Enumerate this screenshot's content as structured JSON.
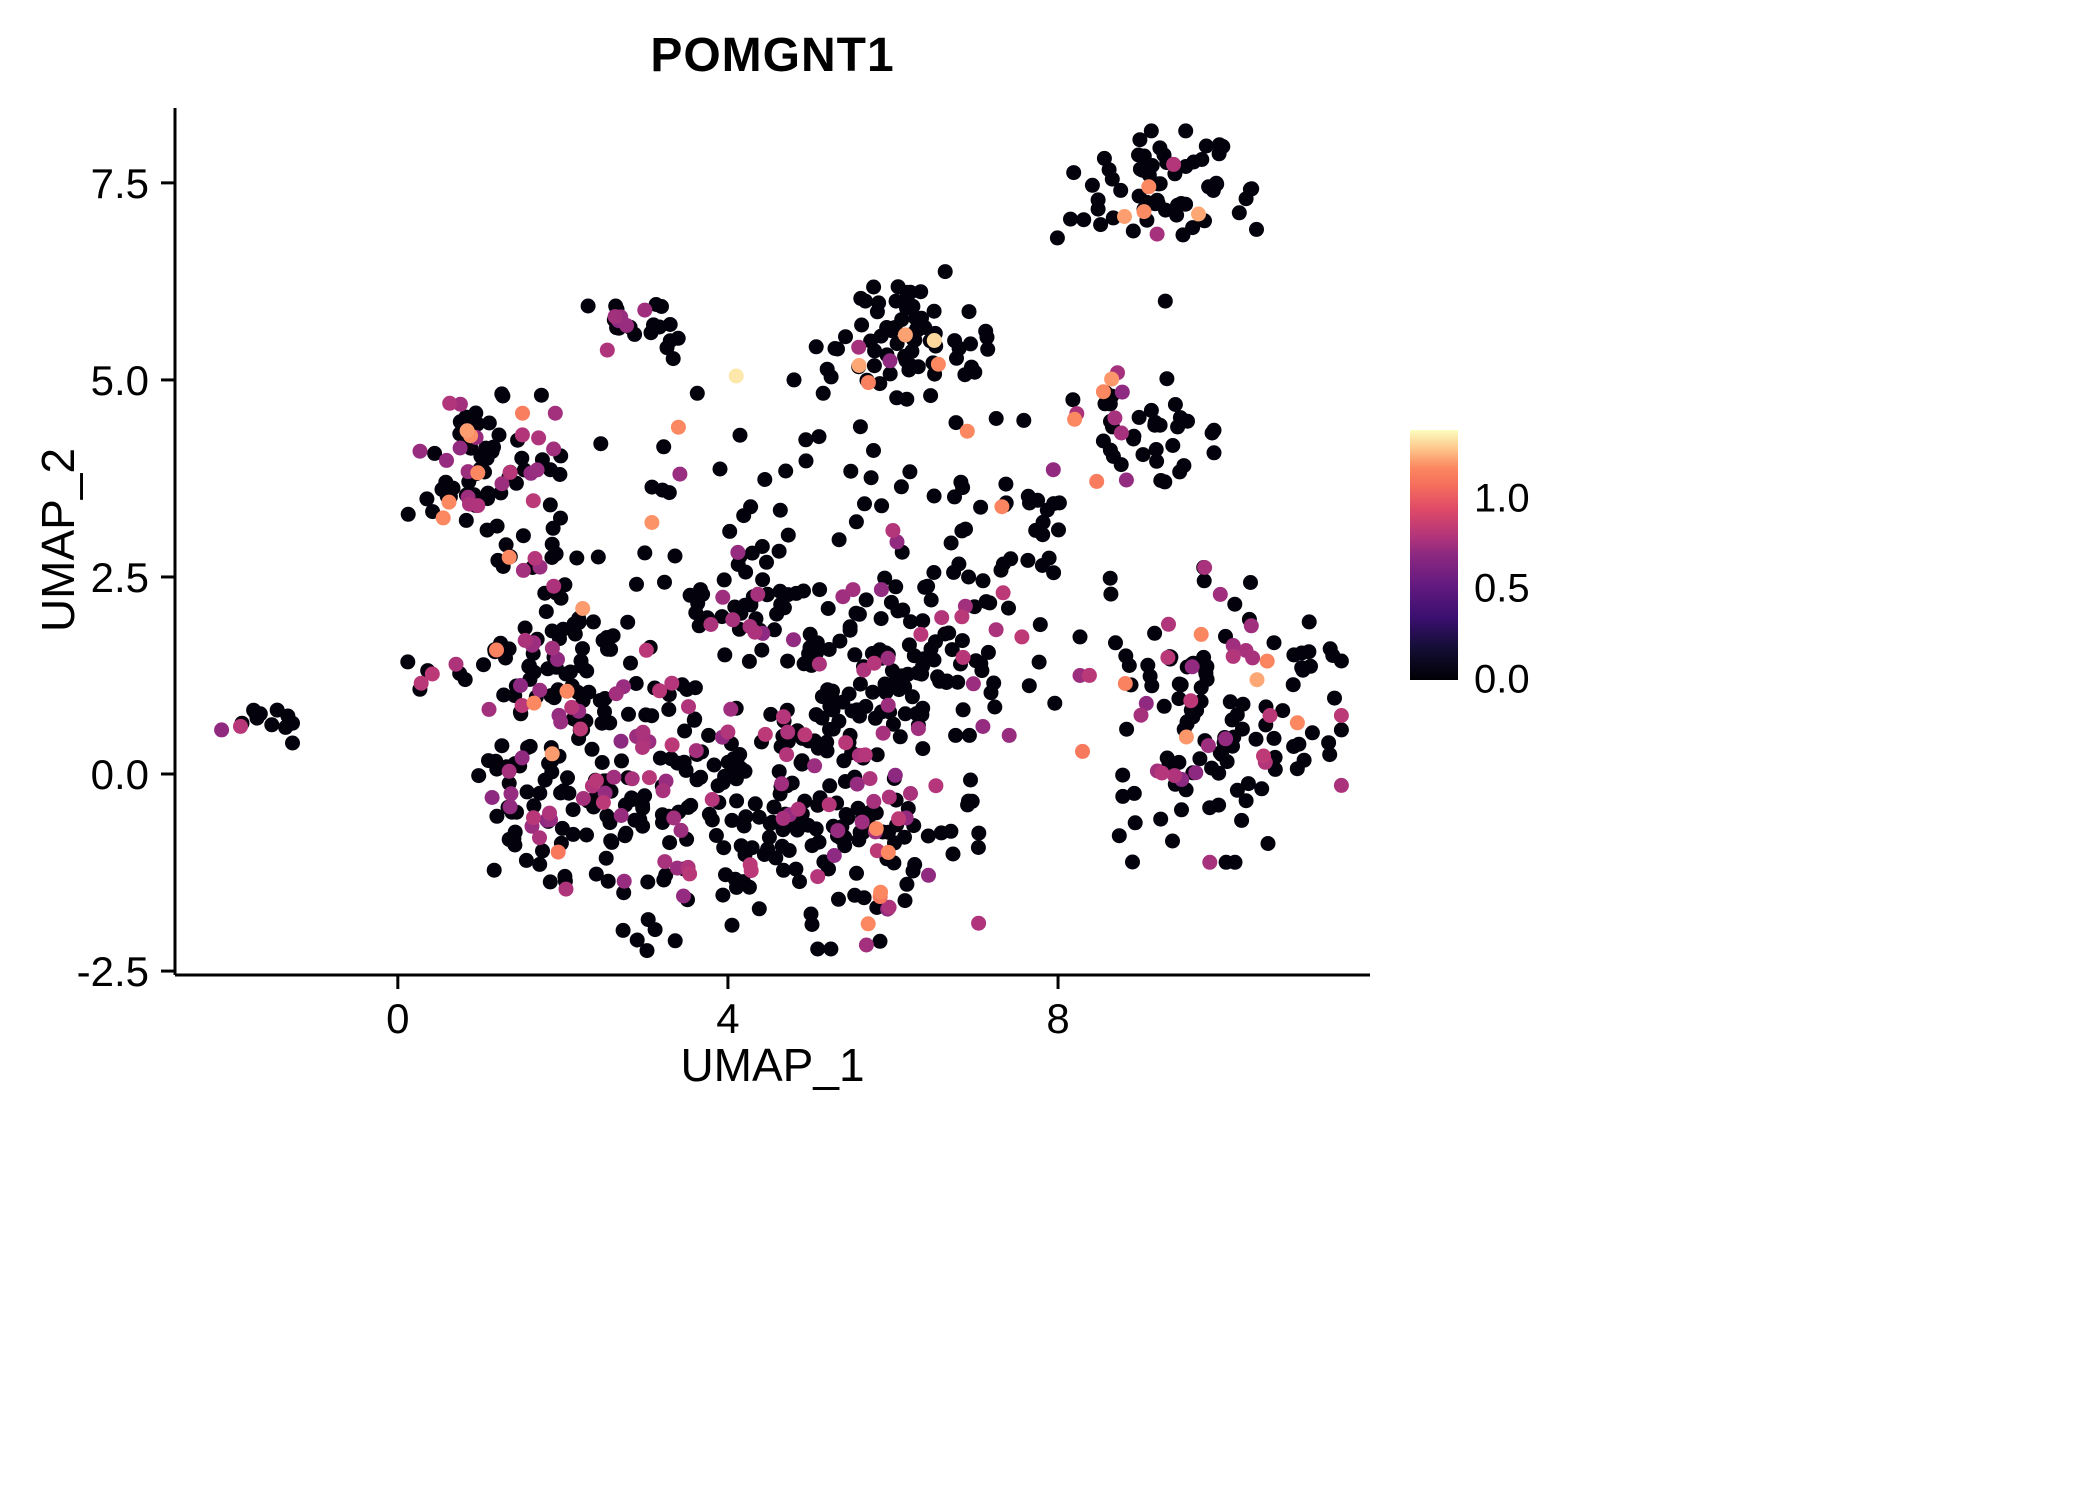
{
  "chart_data": {
    "type": "scatter",
    "title": "POMGNT1",
    "xlabel": "UMAP_1",
    "ylabel": "UMAP_2",
    "xlim": [
      -2.7,
      11.78
    ],
    "ylim": [
      -2.55,
      8.45
    ],
    "grid": false,
    "legend_position": "right",
    "point_radius_px": 7.5,
    "xticks": [
      {
        "value": 0,
        "label": "0"
      },
      {
        "value": 4,
        "label": "4"
      },
      {
        "value": 8,
        "label": "8"
      }
    ],
    "yticks": [
      {
        "value": -2.5,
        "label": "-2.5"
      },
      {
        "value": 0.0,
        "label": "0.0"
      },
      {
        "value": 2.5,
        "label": "2.5"
      },
      {
        "value": 5.0,
        "label": "5.0"
      },
      {
        "value": 7.5,
        "label": "7.5"
      }
    ],
    "colorbar": {
      "vmin": 0.0,
      "vmax": 1.38,
      "ticks": [
        {
          "value": 1.0,
          "label": "1.0"
        },
        {
          "value": 0.5,
          "label": "0.5"
        },
        {
          "value": 0.0,
          "label": "0.0"
        }
      ],
      "stops": [
        {
          "t": 0.0,
          "color": "#000004"
        },
        {
          "t": 0.13,
          "color": "#140e36"
        },
        {
          "t": 0.25,
          "color": "#3b0f70"
        },
        {
          "t": 0.38,
          "color": "#641a80"
        },
        {
          "t": 0.5,
          "color": "#8c2981"
        },
        {
          "t": 0.58,
          "color": "#b5367a"
        },
        {
          "t": 0.68,
          "color": "#de4968"
        },
        {
          "t": 0.78,
          "color": "#f66e5c"
        },
        {
          "t": 0.85,
          "color": "#fb8861"
        },
        {
          "t": 0.92,
          "color": "#fec287"
        },
        {
          "t": 1.0,
          "color": "#fcfdbf"
        }
      ]
    },
    "expression_levels": {
      "zero": 0.02,
      "mid": 0.55,
      "high": 0.85,
      "max": 0.97
    },
    "clusters": [
      {
        "name": "far-left-cluster",
        "n": 13,
        "cx": -1.62,
        "cy": 0.68,
        "sx": 0.28,
        "sy": 0.13,
        "mix": [
          {
            "v": 0.02,
            "w": 0.62
          },
          {
            "v": 0.55,
            "w": 0.38
          }
        ]
      },
      {
        "name": "left-upper-cluster",
        "n": 78,
        "cx": 1.05,
        "cy": 4.0,
        "sx": 0.42,
        "sy": 0.4,
        "mix": [
          {
            "v": 0.02,
            "w": 0.7
          },
          {
            "v": 0.55,
            "w": 0.24
          },
          {
            "v": 0.85,
            "w": 0.06
          }
        ]
      },
      {
        "name": "left-mid-arm",
        "n": 18,
        "cx": 1.6,
        "cy": 2.7,
        "sx": 0.35,
        "sy": 0.35,
        "mix": [
          {
            "v": 0.02,
            "w": 0.8
          },
          {
            "v": 0.55,
            "w": 0.2
          }
        ]
      },
      {
        "name": "small-left-isolates",
        "n": 8,
        "cx": 0.55,
        "cy": 1.3,
        "sx": 0.25,
        "sy": 0.2,
        "mix": [
          {
            "v": 0.02,
            "w": 0.7
          },
          {
            "v": 0.55,
            "w": 0.3
          }
        ]
      },
      {
        "name": "top-small-cluster",
        "n": 24,
        "cx": 2.9,
        "cy": 5.8,
        "sx": 0.27,
        "sy": 0.25,
        "mix": [
          {
            "v": 0.02,
            "w": 0.84
          },
          {
            "v": 0.55,
            "w": 0.16
          }
        ]
      },
      {
        "name": "top-mid-cluster",
        "n": 75,
        "cx": 6.15,
        "cy": 5.45,
        "sx": 0.5,
        "sy": 0.42,
        "mix": [
          {
            "v": 0.02,
            "w": 0.92
          },
          {
            "v": 0.55,
            "w": 0.05
          },
          {
            "v": 0.85,
            "w": 0.03
          }
        ]
      },
      {
        "name": "top-right-cluster",
        "n": 58,
        "cx": 9.35,
        "cy": 7.5,
        "sx": 0.5,
        "sy": 0.3,
        "mix": [
          {
            "v": 0.02,
            "w": 0.93
          },
          {
            "v": 0.55,
            "w": 0.04
          },
          {
            "v": 0.85,
            "w": 0.03
          }
        ]
      },
      {
        "name": "top-right-stragglers",
        "n": 6,
        "cx": 8.0,
        "cy": 6.9,
        "sx": 0.5,
        "sy": 0.45,
        "mix": [
          {
            "v": 0.02,
            "w": 1.0
          }
        ]
      },
      {
        "name": "right-mid-cluster",
        "n": 42,
        "cx": 8.9,
        "cy": 4.3,
        "sx": 0.45,
        "sy": 0.38,
        "mix": [
          {
            "v": 0.02,
            "w": 0.8
          },
          {
            "v": 0.55,
            "w": 0.14
          },
          {
            "v": 0.85,
            "w": 0.06
          }
        ]
      },
      {
        "name": "right-lower-cluster",
        "n": 145,
        "cx": 9.85,
        "cy": 0.75,
        "sx": 0.72,
        "sy": 0.85,
        "mix": [
          {
            "v": 0.02,
            "w": 0.77
          },
          {
            "v": 0.55,
            "w": 0.21
          },
          {
            "v": 0.85,
            "w": 0.02
          }
        ]
      },
      {
        "name": "center-left-upper",
        "n": 60,
        "cx": 1.85,
        "cy": 1.25,
        "sx": 0.5,
        "sy": 0.55,
        "mix": [
          {
            "v": 0.02,
            "w": 0.7
          },
          {
            "v": 0.55,
            "w": 0.25
          },
          {
            "v": 0.85,
            "w": 0.05
          }
        ]
      },
      {
        "name": "center-left-lower",
        "n": 70,
        "cx": 1.75,
        "cy": -0.25,
        "sx": 0.45,
        "sy": 0.55,
        "mix": [
          {
            "v": 0.02,
            "w": 0.72
          },
          {
            "v": 0.55,
            "w": 0.27
          },
          {
            "v": 0.85,
            "w": 0.01
          }
        ]
      },
      {
        "name": "center-column",
        "n": 55,
        "cx": 2.7,
        "cy": 0.4,
        "sx": 0.5,
        "sy": 0.8,
        "mix": [
          {
            "v": 0.02,
            "w": 0.8
          },
          {
            "v": 0.55,
            "w": 0.2
          }
        ]
      },
      {
        "name": "center-bottom-left",
        "n": 80,
        "cx": 3.6,
        "cy": -0.7,
        "sx": 0.7,
        "sy": 0.7,
        "mix": [
          {
            "v": 0.02,
            "w": 0.8
          },
          {
            "v": 0.55,
            "w": 0.19
          },
          {
            "v": 0.85,
            "w": 0.01
          }
        ]
      },
      {
        "name": "center-core",
        "n": 95,
        "cx": 4.6,
        "cy": 0.3,
        "sx": 0.8,
        "sy": 0.9,
        "mix": [
          {
            "v": 0.02,
            "w": 0.78
          },
          {
            "v": 0.55,
            "w": 0.22
          }
        ]
      },
      {
        "name": "center-bottom-right",
        "n": 80,
        "cx": 5.5,
        "cy": -0.9,
        "sx": 0.7,
        "sy": 0.6,
        "mix": [
          {
            "v": 0.02,
            "w": 0.8
          },
          {
            "v": 0.55,
            "w": 0.16
          },
          {
            "v": 0.85,
            "w": 0.04
          }
        ]
      },
      {
        "name": "center-right",
        "n": 70,
        "cx": 5.9,
        "cy": 0.8,
        "sx": 0.7,
        "sy": 0.7,
        "mix": [
          {
            "v": 0.02,
            "w": 0.8
          },
          {
            "v": 0.55,
            "w": 0.2
          }
        ]
      },
      {
        "name": "center-upper-right",
        "n": 58,
        "cx": 6.8,
        "cy": 1.7,
        "sx": 0.6,
        "sy": 0.55,
        "mix": [
          {
            "v": 0.02,
            "w": 0.86
          },
          {
            "v": 0.55,
            "w": 0.14
          }
        ]
      },
      {
        "name": "center-upper",
        "n": 50,
        "cx": 4.2,
        "cy": 2.0,
        "sx": 0.9,
        "sy": 0.5,
        "mix": [
          {
            "v": 0.02,
            "w": 0.82
          },
          {
            "v": 0.55,
            "w": 0.18
          }
        ]
      },
      {
        "name": "mid-band-sparse",
        "n": 60,
        "cx": 4.6,
        "cy": 3.4,
        "sx": 1.6,
        "sy": 0.65,
        "mix": [
          {
            "v": 0.02,
            "w": 0.85
          },
          {
            "v": 0.55,
            "w": 0.12
          },
          {
            "v": 0.85,
            "w": 0.03
          }
        ]
      },
      {
        "name": "bridge-right-sparse",
        "n": 26,
        "cx": 7.6,
        "cy": 3.5,
        "sx": 0.65,
        "sy": 0.8,
        "mix": [
          {
            "v": 0.02,
            "w": 0.88
          },
          {
            "v": 0.55,
            "w": 0.08
          },
          {
            "v": 0.85,
            "w": 0.04
          }
        ]
      }
    ],
    "highlight_points": [
      {
        "x": 4.1,
        "y": 5.05,
        "v": 0.97
      },
      {
        "x": 6.5,
        "y": 5.5,
        "v": 0.95
      },
      {
        "x": 9.1,
        "y": 7.45,
        "v": 0.85
      },
      {
        "x": 9.2,
        "y": 6.85,
        "v": 0.55
      },
      {
        "x": 8.2,
        "y": 4.5,
        "v": 0.85
      },
      {
        "x": 8.55,
        "y": 4.85,
        "v": 0.85
      },
      {
        "x": 5.85,
        "y": -1.5,
        "v": 0.85
      },
      {
        "x": 5.7,
        "y": -1.9,
        "v": 0.85
      },
      {
        "x": 0.62,
        "y": 3.45,
        "v": 0.85
      },
      {
        "x": 0.55,
        "y": 3.25,
        "v": 0.85
      },
      {
        "x": 1.35,
        "y": 2.75,
        "v": 0.85
      },
      {
        "x": 2.05,
        "y": 1.05,
        "v": 0.85
      },
      {
        "x": 1.65,
        "y": 0.9,
        "v": 0.85
      },
      {
        "x": 10.9,
        "y": 0.65,
        "v": 0.85
      },
      {
        "x": 6.9,
        "y": 4.35,
        "v": 0.85
      },
      {
        "x": 3.4,
        "y": 4.4,
        "v": 0.85
      },
      {
        "x": 6.55,
        "y": 5.2,
        "v": 0.85
      },
      {
        "x": 9.3,
        "y": 6.0,
        "v": 0.02
      },
      {
        "x": 4.8,
        "y": 5.0,
        "v": 0.02
      }
    ]
  }
}
